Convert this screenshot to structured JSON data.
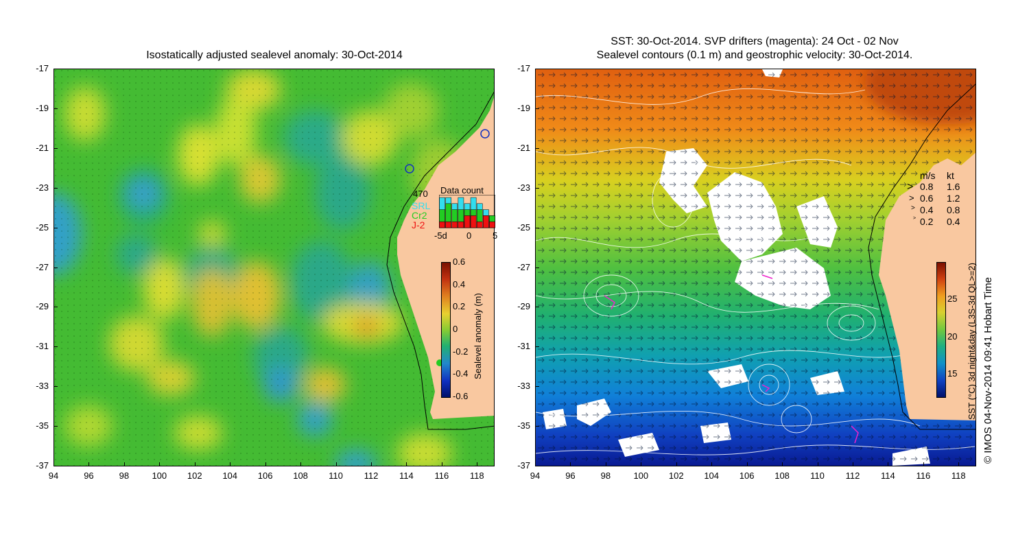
{
  "left_map": {
    "title": "Isostatically adjusted sealevel anomaly: 30-Oct-2014",
    "y_ticks": [
      "-17",
      "-19",
      "-21",
      "-23",
      "-25",
      "-27",
      "-29",
      "-31",
      "-33",
      "-35",
      "-37"
    ],
    "x_ticks": [
      "94",
      "96",
      "98",
      "100",
      "102",
      "104",
      "106",
      "108",
      "110",
      "112",
      "114",
      "116",
      "118"
    ],
    "colorbar": {
      "label": "Sealevel anomaly (m)",
      "ticks": [
        "0.6",
        "0.4",
        "0.2",
        "0",
        "-0.2",
        "-0.4",
        "-0.6"
      ],
      "range": [
        -0.6,
        0.6
      ]
    },
    "data_count": {
      "title": "Data count",
      "total": "470",
      "legend": [
        {
          "name": "SRL",
          "color": "#33ddee"
        },
        {
          "name": "Cr2",
          "color": "#22cc22"
        },
        {
          "name": "J-2",
          "color": "#ee1111"
        }
      ],
      "x_ticks": [
        "-5d",
        "0",
        "5"
      ],
      "bars_total": [
        5,
        5,
        4,
        5,
        4,
        5,
        4,
        3,
        2
      ],
      "bars_cr2": [
        3,
        4,
        3,
        3,
        3,
        3,
        3,
        2,
        2
      ],
      "bars_j2": [
        1,
        1,
        1,
        1,
        2,
        2,
        1,
        2,
        1
      ]
    }
  },
  "right_map": {
    "title_line1": "SST: 30-Oct-2014. SVP drifters (magenta): 24 Oct - 02 Nov",
    "title_line2": "Sealevel contours (0.1 m) and geostrophic velocity: 30-Oct-2014.",
    "y_ticks": [
      "-17",
      "-19",
      "-21",
      "-23",
      "-25",
      "-27",
      "-29",
      "-31",
      "-33",
      "-35",
      "-37"
    ],
    "x_ticks": [
      "94",
      "96",
      "98",
      "100",
      "102",
      "104",
      "106",
      "108",
      "110",
      "112",
      "114",
      "116",
      "118"
    ],
    "velocity_legend": {
      "header_ms": "m/s",
      "header_kt": "kt",
      "rows": [
        {
          "ms": "0.8",
          "kt": "1.6"
        },
        {
          "ms": "0.6",
          "kt": "1.2"
        },
        {
          "ms": "0.4",
          "kt": "0.8"
        },
        {
          "ms": "0.2",
          "kt": "0.4"
        }
      ]
    },
    "colorbar": {
      "label": "SST (°C) 3d night&day (L3S-3d QL>=2)",
      "ticks": [
        "25",
        "20",
        "15"
      ],
      "range": [
        12,
        30
      ]
    }
  },
  "copyright": "© IMOS 04-Nov-2014 09:41 Hobart Time",
  "colors": {
    "land": "#f9c8a0",
    "sla_neutral": "#33bb33",
    "sst_warm": "#e06010",
    "sst_cool": "#1030c0"
  }
}
